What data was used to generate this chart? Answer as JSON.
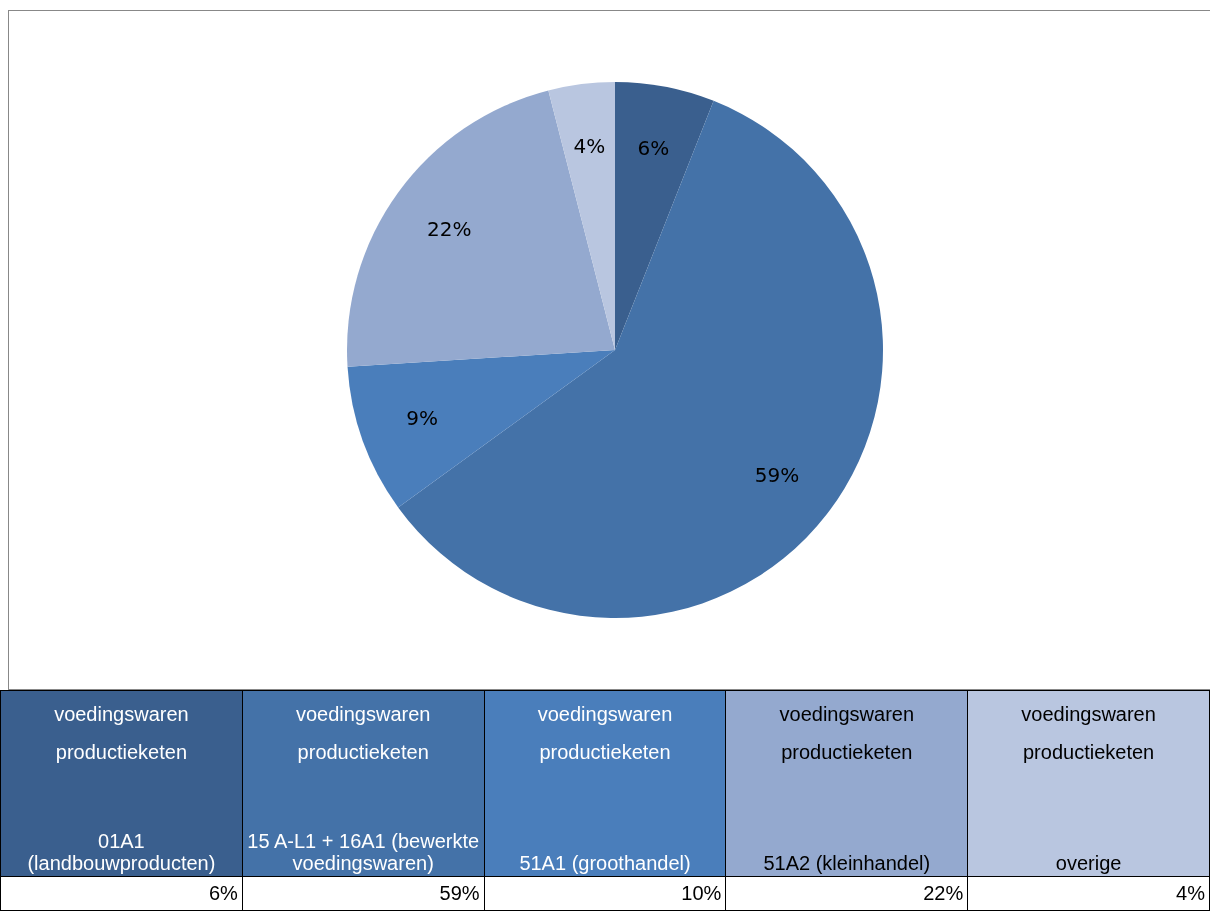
{
  "chart_data": {
    "type": "pie",
    "categories": [
      "voedingswaren\nproductieketen\n01A1 (landbouwproducten)",
      "voedingswaren\nproductieketen\n15 A-L1 + 16A1 (bewerkte voedingswaren)",
      "voedingswaren\nproductieketen\n51A1 (groothandel)",
      "voedingswaren\nproductieketen\n51A2 (kleinhandel)",
      "voedingswaren\nproductieketen\noverige"
    ],
    "values": [
      6,
      59,
      9,
      22,
      4
    ],
    "value_labels": [
      "6%",
      "59%",
      "9%",
      "22%",
      "4%"
    ],
    "colors": [
      "#3a5f8e",
      "#4472a8",
      "#4a7ebb",
      "#94a9cf",
      "#b9c6e0"
    ],
    "annotations": [
      "6%",
      "59%",
      "10%",
      "22%",
      "4%"
    ]
  }
}
